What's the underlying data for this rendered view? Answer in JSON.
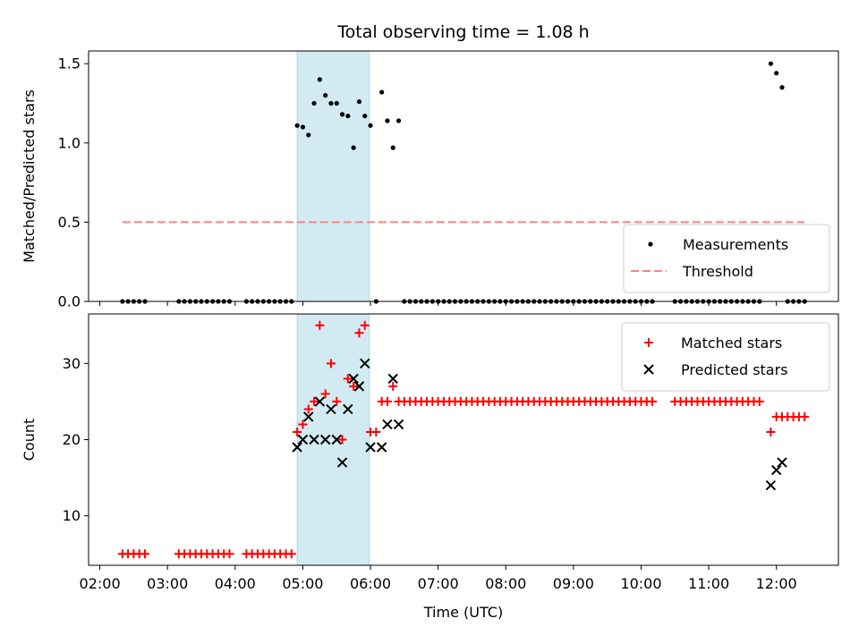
{
  "chart_data": [
    {
      "type": "scatter",
      "title": "Total observing time = 1.08 h",
      "ylabel": "Matched/Predicted stars",
      "xlabel": "",
      "xlim": [
        "01:50",
        "12:55"
      ],
      "ylim": [
        0,
        1.58
      ],
      "yticks": [
        0.0,
        0.5,
        1.0,
        1.5
      ],
      "ytick_labels": [
        "0.0",
        "0.5",
        "1.0",
        "1.5"
      ],
      "grid": false,
      "legend_position": "lower-right",
      "shaded_span": {
        "start": "04:55",
        "end": "05:59",
        "color": "#add8e6"
      },
      "threshold": {
        "name": "Threshold",
        "value": 0.5,
        "x_start": "02:20",
        "x_end": "12:25",
        "color": "#ff8080",
        "style": "dashed"
      },
      "series": [
        {
          "name": "Measurements",
          "marker": "dot",
          "color": "#000000",
          "x": [
            "02:20",
            "02:25",
            "02:30",
            "02:35",
            "02:40",
            "03:10",
            "03:15",
            "03:20",
            "03:25",
            "03:30",
            "03:35",
            "03:40",
            "03:45",
            "03:50",
            "03:55",
            "04:10",
            "04:15",
            "04:20",
            "04:25",
            "04:30",
            "04:35",
            "04:40",
            "04:45",
            "04:50",
            "04:55",
            "05:00",
            "05:05",
            "05:10",
            "05:15",
            "05:20",
            "05:25",
            "05:30",
            "05:35",
            "05:40",
            "05:45",
            "05:50",
            "05:55",
            "06:00",
            "06:05",
            "06:10",
            "06:15",
            "06:20",
            "06:25",
            "06:30",
            "06:35",
            "06:40",
            "06:45",
            "06:50",
            "06:55",
            "07:00",
            "07:05",
            "07:10",
            "07:15",
            "07:20",
            "07:25",
            "07:30",
            "07:35",
            "07:40",
            "07:45",
            "07:50",
            "07:55",
            "08:00",
            "08:05",
            "08:10",
            "08:15",
            "08:20",
            "08:25",
            "08:30",
            "08:35",
            "08:40",
            "08:45",
            "08:50",
            "08:55",
            "09:00",
            "09:05",
            "09:10",
            "09:15",
            "09:20",
            "09:25",
            "09:30",
            "09:35",
            "09:40",
            "09:45",
            "09:50",
            "09:55",
            "10:00",
            "10:05",
            "10:10",
            "10:30",
            "10:35",
            "10:40",
            "10:45",
            "10:50",
            "10:55",
            "11:00",
            "11:05",
            "11:10",
            "11:15",
            "11:20",
            "11:25",
            "11:30",
            "11:35",
            "11:40",
            "11:45",
            "11:55",
            "12:00",
            "12:05",
            "12:10",
            "12:15",
            "12:20",
            "12:25"
          ],
          "y": [
            0,
            0,
            0,
            0,
            0,
            0,
            0,
            0,
            0,
            0,
            0,
            0,
            0,
            0,
            0,
            0,
            0,
            0,
            0,
            0,
            0,
            0,
            0,
            0,
            1.11,
            1.1,
            1.05,
            1.25,
            1.4,
            1.3,
            1.25,
            1.25,
            1.18,
            1.17,
            0.97,
            1.26,
            1.17,
            1.11,
            0,
            1.32,
            1.14,
            0.97,
            1.14,
            0,
            0,
            0,
            0,
            0,
            0,
            0,
            0,
            0,
            0,
            0,
            0,
            0,
            0,
            0,
            0,
            0,
            0,
            0,
            0,
            0,
            0,
            0,
            0,
            0,
            0,
            0,
            0,
            0,
            0,
            0,
            0,
            0,
            0,
            0,
            0,
            0,
            0,
            0,
            0,
            0,
            0,
            0,
            0,
            0,
            0,
            0,
            0,
            0,
            0,
            0,
            0,
            0,
            0,
            0,
            0,
            0,
            0,
            0,
            0,
            0,
            1.5,
            1.44,
            1.35,
            0,
            0,
            0,
            0
          ]
        }
      ]
    },
    {
      "type": "scatter",
      "title": "",
      "ylabel": "Count",
      "xlabel": "Time (UTC)",
      "xlim": [
        "01:50",
        "12:55"
      ],
      "ylim": [
        3.5,
        36.5
      ],
      "yticks": [
        10,
        20,
        30
      ],
      "ytick_labels": [
        "10",
        "20",
        "30"
      ],
      "xticks": [
        "02:00",
        "03:00",
        "04:00",
        "05:00",
        "06:00",
        "07:00",
        "08:00",
        "09:00",
        "10:00",
        "11:00",
        "12:00"
      ],
      "xtick_labels": [
        "02:00",
        "03:00",
        "04:00",
        "05:00",
        "06:00",
        "07:00",
        "08:00",
        "09:00",
        "10:00",
        "11:00",
        "12:00"
      ],
      "grid": false,
      "legend_position": "upper-right",
      "shaded_span": {
        "start": "04:55",
        "end": "05:59",
        "color": "#add8e6"
      },
      "series": [
        {
          "name": "Matched stars",
          "marker": "plus",
          "color": "#ff0000",
          "x": [
            "02:20",
            "02:25",
            "02:30",
            "02:35",
            "02:40",
            "03:10",
            "03:15",
            "03:20",
            "03:25",
            "03:30",
            "03:35",
            "03:40",
            "03:45",
            "03:50",
            "03:55",
            "04:10",
            "04:15",
            "04:20",
            "04:25",
            "04:30",
            "04:35",
            "04:40",
            "04:45",
            "04:50",
            "04:55",
            "05:00",
            "05:05",
            "05:10",
            "05:15",
            "05:20",
            "05:25",
            "05:30",
            "05:35",
            "05:40",
            "05:45",
            "05:50",
            "05:55",
            "06:00",
            "06:05",
            "06:10",
            "06:15",
            "06:20",
            "06:25",
            "06:30",
            "06:35",
            "06:40",
            "06:45",
            "06:50",
            "06:55",
            "07:00",
            "07:05",
            "07:10",
            "07:15",
            "07:20",
            "07:25",
            "07:30",
            "07:35",
            "07:40",
            "07:45",
            "07:50",
            "07:55",
            "08:00",
            "08:05",
            "08:10",
            "08:15",
            "08:20",
            "08:25",
            "08:30",
            "08:35",
            "08:40",
            "08:45",
            "08:50",
            "08:55",
            "09:00",
            "09:05",
            "09:10",
            "09:15",
            "09:20",
            "09:25",
            "09:30",
            "09:35",
            "09:40",
            "09:45",
            "09:50",
            "09:55",
            "10:00",
            "10:05",
            "10:10",
            "10:30",
            "10:35",
            "10:40",
            "10:45",
            "10:50",
            "10:55",
            "11:00",
            "11:05",
            "11:10",
            "11:15",
            "11:20",
            "11:25",
            "11:30",
            "11:35",
            "11:40",
            "11:45",
            "11:55",
            "12:00",
            "12:05",
            "12:10",
            "12:15",
            "12:20",
            "12:25"
          ],
          "y": [
            5,
            5,
            5,
            5,
            5,
            5,
            5,
            5,
            5,
            5,
            5,
            5,
            5,
            5,
            5,
            5,
            5,
            5,
            5,
            5,
            5,
            5,
            5,
            5,
            21,
            22,
            24,
            25,
            35,
            26,
            30,
            25,
            20,
            28,
            27,
            34,
            35,
            21,
            21,
            25,
            25,
            27,
            25,
            25,
            25,
            25,
            25,
            25,
            25,
            25,
            25,
            25,
            25,
            25,
            25,
            25,
            25,
            25,
            25,
            25,
            25,
            25,
            25,
            25,
            25,
            25,
            25,
            25,
            25,
            25,
            25,
            25,
            25,
            25,
            25,
            25,
            25,
            25,
            25,
            25,
            25,
            25,
            25,
            25,
            25,
            25,
            25,
            25,
            25,
            25,
            25,
            25,
            25,
            25,
            25,
            25,
            25,
            25,
            25,
            25,
            25,
            25,
            25,
            25,
            21,
            23,
            23,
            23,
            23,
            23,
            23
          ]
        },
        {
          "name": "Predicted stars",
          "marker": "x",
          "color": "#000000",
          "x": [
            "04:55",
            "05:00",
            "05:05",
            "05:10",
            "05:15",
            "05:20",
            "05:25",
            "05:30",
            "05:35",
            "05:40",
            "05:45",
            "05:50",
            "05:55",
            "06:00",
            "06:10",
            "06:15",
            "06:20",
            "06:25",
            "11:55",
            "12:00",
            "12:05"
          ],
          "y": [
            19,
            20,
            23,
            20,
            25,
            20,
            24,
            20,
            17,
            24,
            28,
            27,
            30,
            19,
            19,
            22,
            28,
            22,
            14,
            16,
            17
          ]
        }
      ]
    }
  ]
}
